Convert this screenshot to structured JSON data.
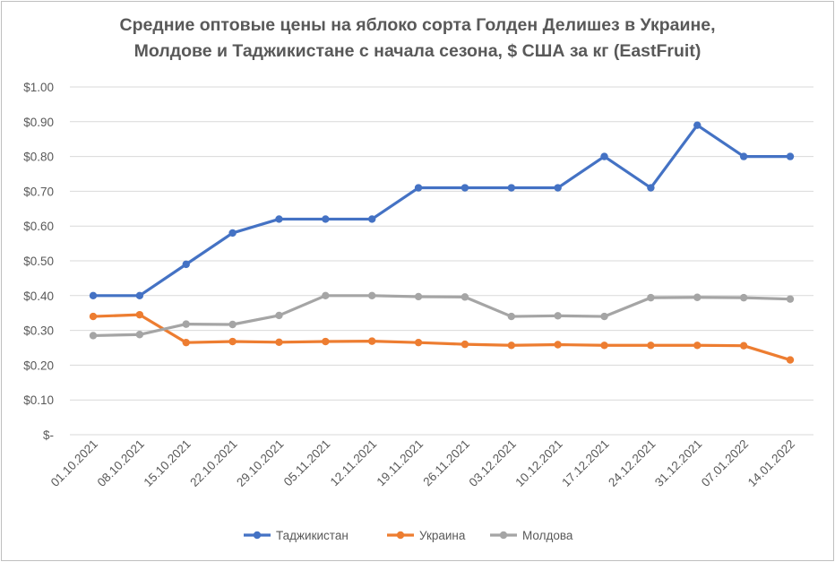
{
  "chart_data": {
    "type": "line",
    "title_line1": "Средние оптовые цены на яблоко сорта Голден Делишез в Украине,",
    "title_line2": "Молдове и Таджикистане с начала сезона, $ США за кг (EastFruit)",
    "xlabel": "",
    "ylabel": "",
    "ylim": [
      0,
      1.0
    ],
    "y_ticks": [
      {
        "value": 1.0,
        "label": "$1.00"
      },
      {
        "value": 0.9,
        "label": "$0.90"
      },
      {
        "value": 0.8,
        "label": "$0.80"
      },
      {
        "value": 0.7,
        "label": "$0.70"
      },
      {
        "value": 0.6,
        "label": "$0.60"
      },
      {
        "value": 0.5,
        "label": "$0.50"
      },
      {
        "value": 0.4,
        "label": "$0.40"
      },
      {
        "value": 0.3,
        "label": "$0.30"
      },
      {
        "value": 0.2,
        "label": "$0.20"
      },
      {
        "value": 0.1,
        "label": "$0.10"
      },
      {
        "value": 0.0,
        "label": "$-"
      }
    ],
    "grid": true,
    "legend_position": "bottom",
    "categories": [
      "01.10.2021",
      "08.10.2021",
      "15.10.2021",
      "22.10.2021",
      "29.10.2021",
      "05.11.2021",
      "12.11.2021",
      "19.11.2021",
      "26.11.2021",
      "03.12.2021",
      "10.12.2021",
      "17.12.2021",
      "24.12.2021",
      "31.12.2021",
      "07.01.2022",
      "14.01.2022"
    ],
    "series": [
      {
        "name": "Таджикистан",
        "color": "#4472c4",
        "values": [
          0.4,
          0.4,
          0.49,
          0.58,
          0.62,
          0.62,
          0.62,
          0.71,
          0.71,
          0.71,
          0.71,
          0.8,
          0.71,
          0.89,
          0.8,
          0.8
        ]
      },
      {
        "name": "Украина",
        "color": "#ed7d31",
        "values": [
          0.34,
          0.345,
          0.265,
          0.268,
          0.266,
          0.268,
          0.269,
          0.265,
          0.26,
          0.257,
          0.259,
          0.257,
          0.257,
          0.257,
          0.256,
          0.215
        ]
      },
      {
        "name": "Молдова",
        "color": "#a5a5a5",
        "values": [
          0.285,
          0.288,
          0.318,
          0.317,
          0.343,
          0.4,
          0.4,
          0.397,
          0.396,
          0.34,
          0.342,
          0.34,
          0.394,
          0.395,
          0.394,
          0.39
        ]
      }
    ]
  }
}
